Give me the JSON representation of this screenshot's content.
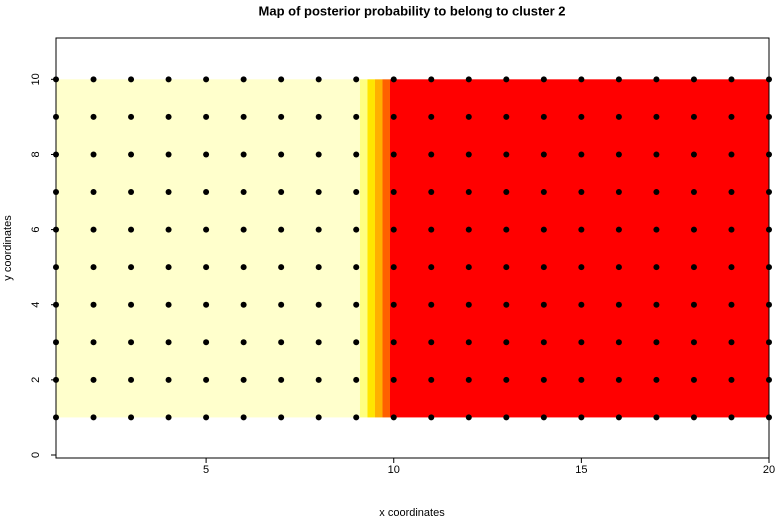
{
  "chart_data": {
    "type": "scatter",
    "title": "Map of posterior probability to belong to cluster  2",
    "x_label": "x coordinates",
    "y_label": "y coordinates",
    "grid_x": [
      1,
      2,
      3,
      4,
      5,
      6,
      7,
      8,
      9,
      10,
      11,
      12,
      13,
      14,
      15,
      16,
      17,
      18,
      19,
      20
    ],
    "grid_y": [
      1,
      2,
      3,
      4,
      5,
      6,
      7,
      8,
      9,
      10
    ],
    "point_color": "#000000",
    "heat": {
      "breaks": [
        1,
        9.1,
        9.3,
        9.5,
        9.7,
        9.9,
        20
      ],
      "levels": [
        0,
        0.2,
        0.4,
        0.6,
        0.8,
        1
      ],
      "colors": [
        "#ffffcc",
        "#ffff80",
        "#ffe600",
        "#ffb000",
        "#ff6000",
        "#ff0000"
      ]
    },
    "xlim": [
      1,
      20
    ],
    "ylim": [
      -0.08,
      11.1
    ],
    "xticks": [
      5,
      10,
      15,
      20
    ],
    "yticks": [
      0,
      2,
      4,
      6,
      8,
      10
    ]
  }
}
